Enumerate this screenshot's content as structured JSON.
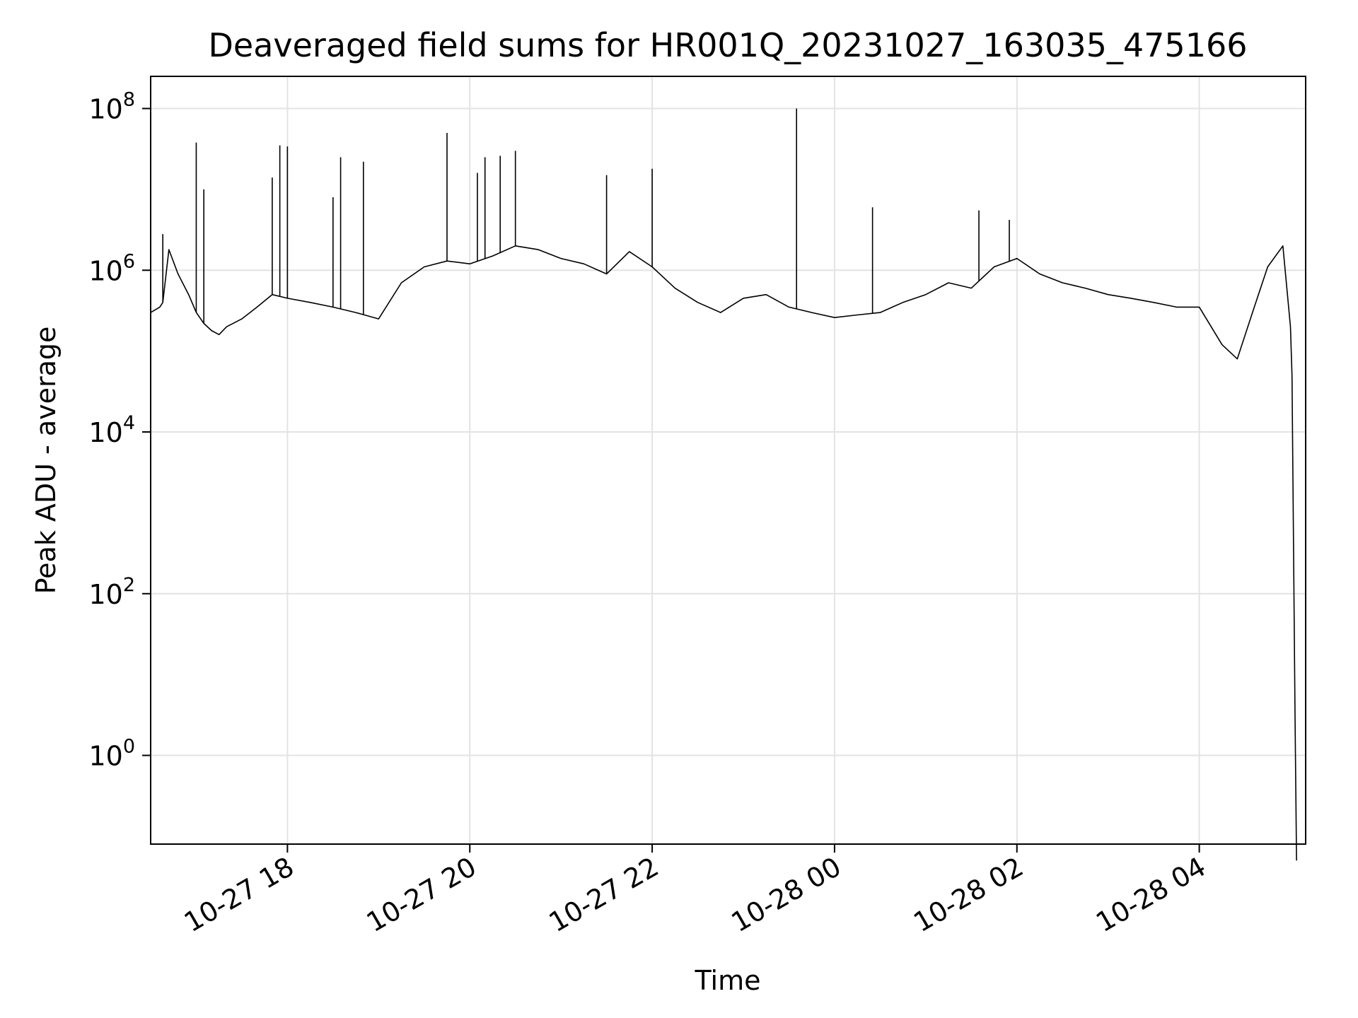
{
  "chart_data": {
    "type": "line",
    "title": "Deaveraged field sums for HR001Q_20231027_163035_475166",
    "xlabel": "Time",
    "ylabel": "Peak ADU - average",
    "y_scale": "log",
    "ylim": [
      0.08,
      250000000
    ],
    "xlim": [
      "2023-10-27 16:30",
      "2023-10-28 05:10"
    ],
    "grid": true,
    "x_ticks": [
      {
        "value": "2023-10-27 18:00",
        "label": "10-27 18"
      },
      {
        "value": "2023-10-27 20:00",
        "label": "10-27 20"
      },
      {
        "value": "2023-10-27 22:00",
        "label": "10-27 22"
      },
      {
        "value": "2023-10-28 00:00",
        "label": "10-28 00"
      },
      {
        "value": "2023-10-28 02:00",
        "label": "10-28 02"
      },
      {
        "value": "2023-10-28 04:00",
        "label": "10-28 04"
      }
    ],
    "y_ticks": [
      {
        "value": 1,
        "base": "10",
        "exp": "0"
      },
      {
        "value": 100,
        "base": "10",
        "exp": "2"
      },
      {
        "value": 10000,
        "base": "10",
        "exp": "4"
      },
      {
        "value": 1000000,
        "base": "10",
        "exp": "6"
      },
      {
        "value": 100000000,
        "base": "10",
        "exp": "8"
      }
    ],
    "line_color": "#000000",
    "series": [
      {
        "x": [
          "2023-10-27 16:30",
          "2023-10-27 16:36",
          "2023-10-27 16:38",
          "2023-10-27 16:42",
          "2023-10-27 16:48",
          "2023-10-27 16:55",
          "2023-10-27 17:00",
          "2023-10-27 17:05",
          "2023-10-27 17:10",
          "2023-10-27 17:15",
          "2023-10-27 17:20",
          "2023-10-27 17:30",
          "2023-10-27 17:40",
          "2023-10-27 17:50",
          "2023-10-27 18:00",
          "2023-10-27 18:15",
          "2023-10-27 18:30",
          "2023-10-27 18:45",
          "2023-10-27 19:00",
          "2023-10-27 19:15",
          "2023-10-27 19:30",
          "2023-10-27 19:45",
          "2023-10-27 20:00",
          "2023-10-27 20:15",
          "2023-10-27 20:30",
          "2023-10-27 20:45",
          "2023-10-27 21:00",
          "2023-10-27 21:15",
          "2023-10-27 21:30",
          "2023-10-27 21:45",
          "2023-10-27 22:00",
          "2023-10-27 22:15",
          "2023-10-27 22:30",
          "2023-10-27 22:45",
          "2023-10-27 23:00",
          "2023-10-27 23:15",
          "2023-10-27 23:30",
          "2023-10-27 23:45",
          "2023-10-28 00:00",
          "2023-10-28 00:15",
          "2023-10-28 00:30",
          "2023-10-28 00:45",
          "2023-10-28 01:00",
          "2023-10-28 01:15",
          "2023-10-28 01:30",
          "2023-10-28 01:45",
          "2023-10-28 02:00",
          "2023-10-28 02:15",
          "2023-10-28 02:30",
          "2023-10-28 02:45",
          "2023-10-28 03:00",
          "2023-10-28 03:15",
          "2023-10-28 03:30",
          "2023-10-28 03:45",
          "2023-10-28 04:00",
          "2023-10-28 04:15",
          "2023-10-28 04:25",
          "2023-10-28 04:35",
          "2023-10-28 04:45",
          "2023-10-28 04:55",
          "2023-10-28 05:00",
          "2023-10-28 05:01",
          "2023-10-28 05:03",
          "2023-10-28 05:04"
        ],
        "y": [
          300000,
          350000,
          400000,
          1800000,
          900000,
          500000,
          300000,
          220000,
          180000,
          160000,
          200000,
          250000,
          350000,
          500000,
          450000,
          400000,
          350000,
          300000,
          250000,
          700000,
          1100000,
          1300000,
          1200000,
          1500000,
          2000000,
          1800000,
          1400000,
          1200000,
          900000,
          1700000,
          1100000,
          600000,
          400000,
          300000,
          450000,
          500000,
          350000,
          300000,
          260000,
          280000,
          300000,
          400000,
          500000,
          700000,
          600000,
          1100000,
          1400000,
          900000,
          700000,
          600000,
          500000,
          450000,
          400000,
          350000,
          350000,
          120000,
          80000,
          300000,
          1100000,
          2000000,
          200000,
          50000,
          3,
          0.05
        ]
      }
    ],
    "spikes": [
      {
        "x": "2023-10-27 16:38",
        "y": 2800000
      },
      {
        "x": "2023-10-27 17:00",
        "y": 38000000
      },
      {
        "x": "2023-10-27 17:05",
        "y": 10000000
      },
      {
        "x": "2023-10-27 17:50",
        "y": 14000000
      },
      {
        "x": "2023-10-27 17:55",
        "y": 35000000
      },
      {
        "x": "2023-10-27 18:00",
        "y": 34000000
      },
      {
        "x": "2023-10-27 18:30",
        "y": 8000000
      },
      {
        "x": "2023-10-27 18:35",
        "y": 25000000
      },
      {
        "x": "2023-10-27 18:50",
        "y": 22000000
      },
      {
        "x": "2023-10-27 19:45",
        "y": 50000000
      },
      {
        "x": "2023-10-27 20:05",
        "y": 16000000
      },
      {
        "x": "2023-10-27 20:10",
        "y": 25000000
      },
      {
        "x": "2023-10-27 20:20",
        "y": 26000000
      },
      {
        "x": "2023-10-27 20:30",
        "y": 30000000
      },
      {
        "x": "2023-10-27 21:30",
        "y": 15000000
      },
      {
        "x": "2023-10-27 22:00",
        "y": 18000000
      },
      {
        "x": "2023-10-27 23:35",
        "y": 100000000
      },
      {
        "x": "2023-10-28 00:25",
        "y": 6000000
      },
      {
        "x": "2023-10-28 01:35",
        "y": 5500000
      },
      {
        "x": "2023-10-28 01:55",
        "y": 4200000
      }
    ]
  }
}
